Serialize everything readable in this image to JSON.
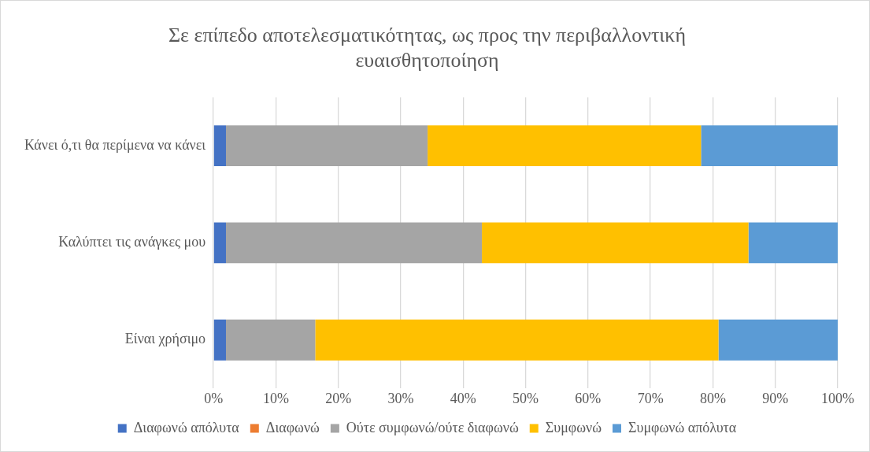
{
  "chart_data": {
    "type": "bar",
    "orientation": "horizontal",
    "stacked": true,
    "title": "Σε επίπεδο αποτελεσματικότητας, ως προς την περιβαλλοντική ευαισθητοποίηση",
    "categories": [
      "Κάνει ό,τι θα περίμενα να κάνει",
      "Καλύπτει τις ανάγκες μου",
      "Είναι χρήσιμο"
    ],
    "series": [
      {
        "name": "Διαφωνώ απόλυτα",
        "color": "#4472c4",
        "values": [
          2.0,
          2.0,
          2.0
        ]
      },
      {
        "name": "Διαφωνώ",
        "color": "#ed7d31",
        "values": [
          0,
          0,
          0
        ]
      },
      {
        "name": "Ούτε συμφωνώ/ούτε διαφωνώ",
        "color": "#a5a5a5",
        "values": [
          32.3,
          41.0,
          14.3
        ]
      },
      {
        "name": "Συμφωνώ",
        "color": "#ffc000",
        "values": [
          43.8,
          42.7,
          64.6
        ]
      },
      {
        "name": "Συμφωνώ απόλυτα",
        "color": "#5b9bd5",
        "values": [
          21.9,
          14.3,
          19.1
        ]
      }
    ],
    "xlim": [
      0,
      100
    ],
    "xticks": [
      {
        "value": 0,
        "label": "0%"
      },
      {
        "value": 10,
        "label": "10%"
      },
      {
        "value": 20,
        "label": "20%"
      },
      {
        "value": 30,
        "label": "30%"
      },
      {
        "value": 40,
        "label": "40%"
      },
      {
        "value": 50,
        "label": "50%"
      },
      {
        "value": 60,
        "label": "60%"
      },
      {
        "value": 70,
        "label": "70%"
      },
      {
        "value": 80,
        "label": "80%"
      },
      {
        "value": 90,
        "label": "90%"
      },
      {
        "value": 100,
        "label": "100%"
      }
    ],
    "grid": "x",
    "legend": "bottom"
  }
}
